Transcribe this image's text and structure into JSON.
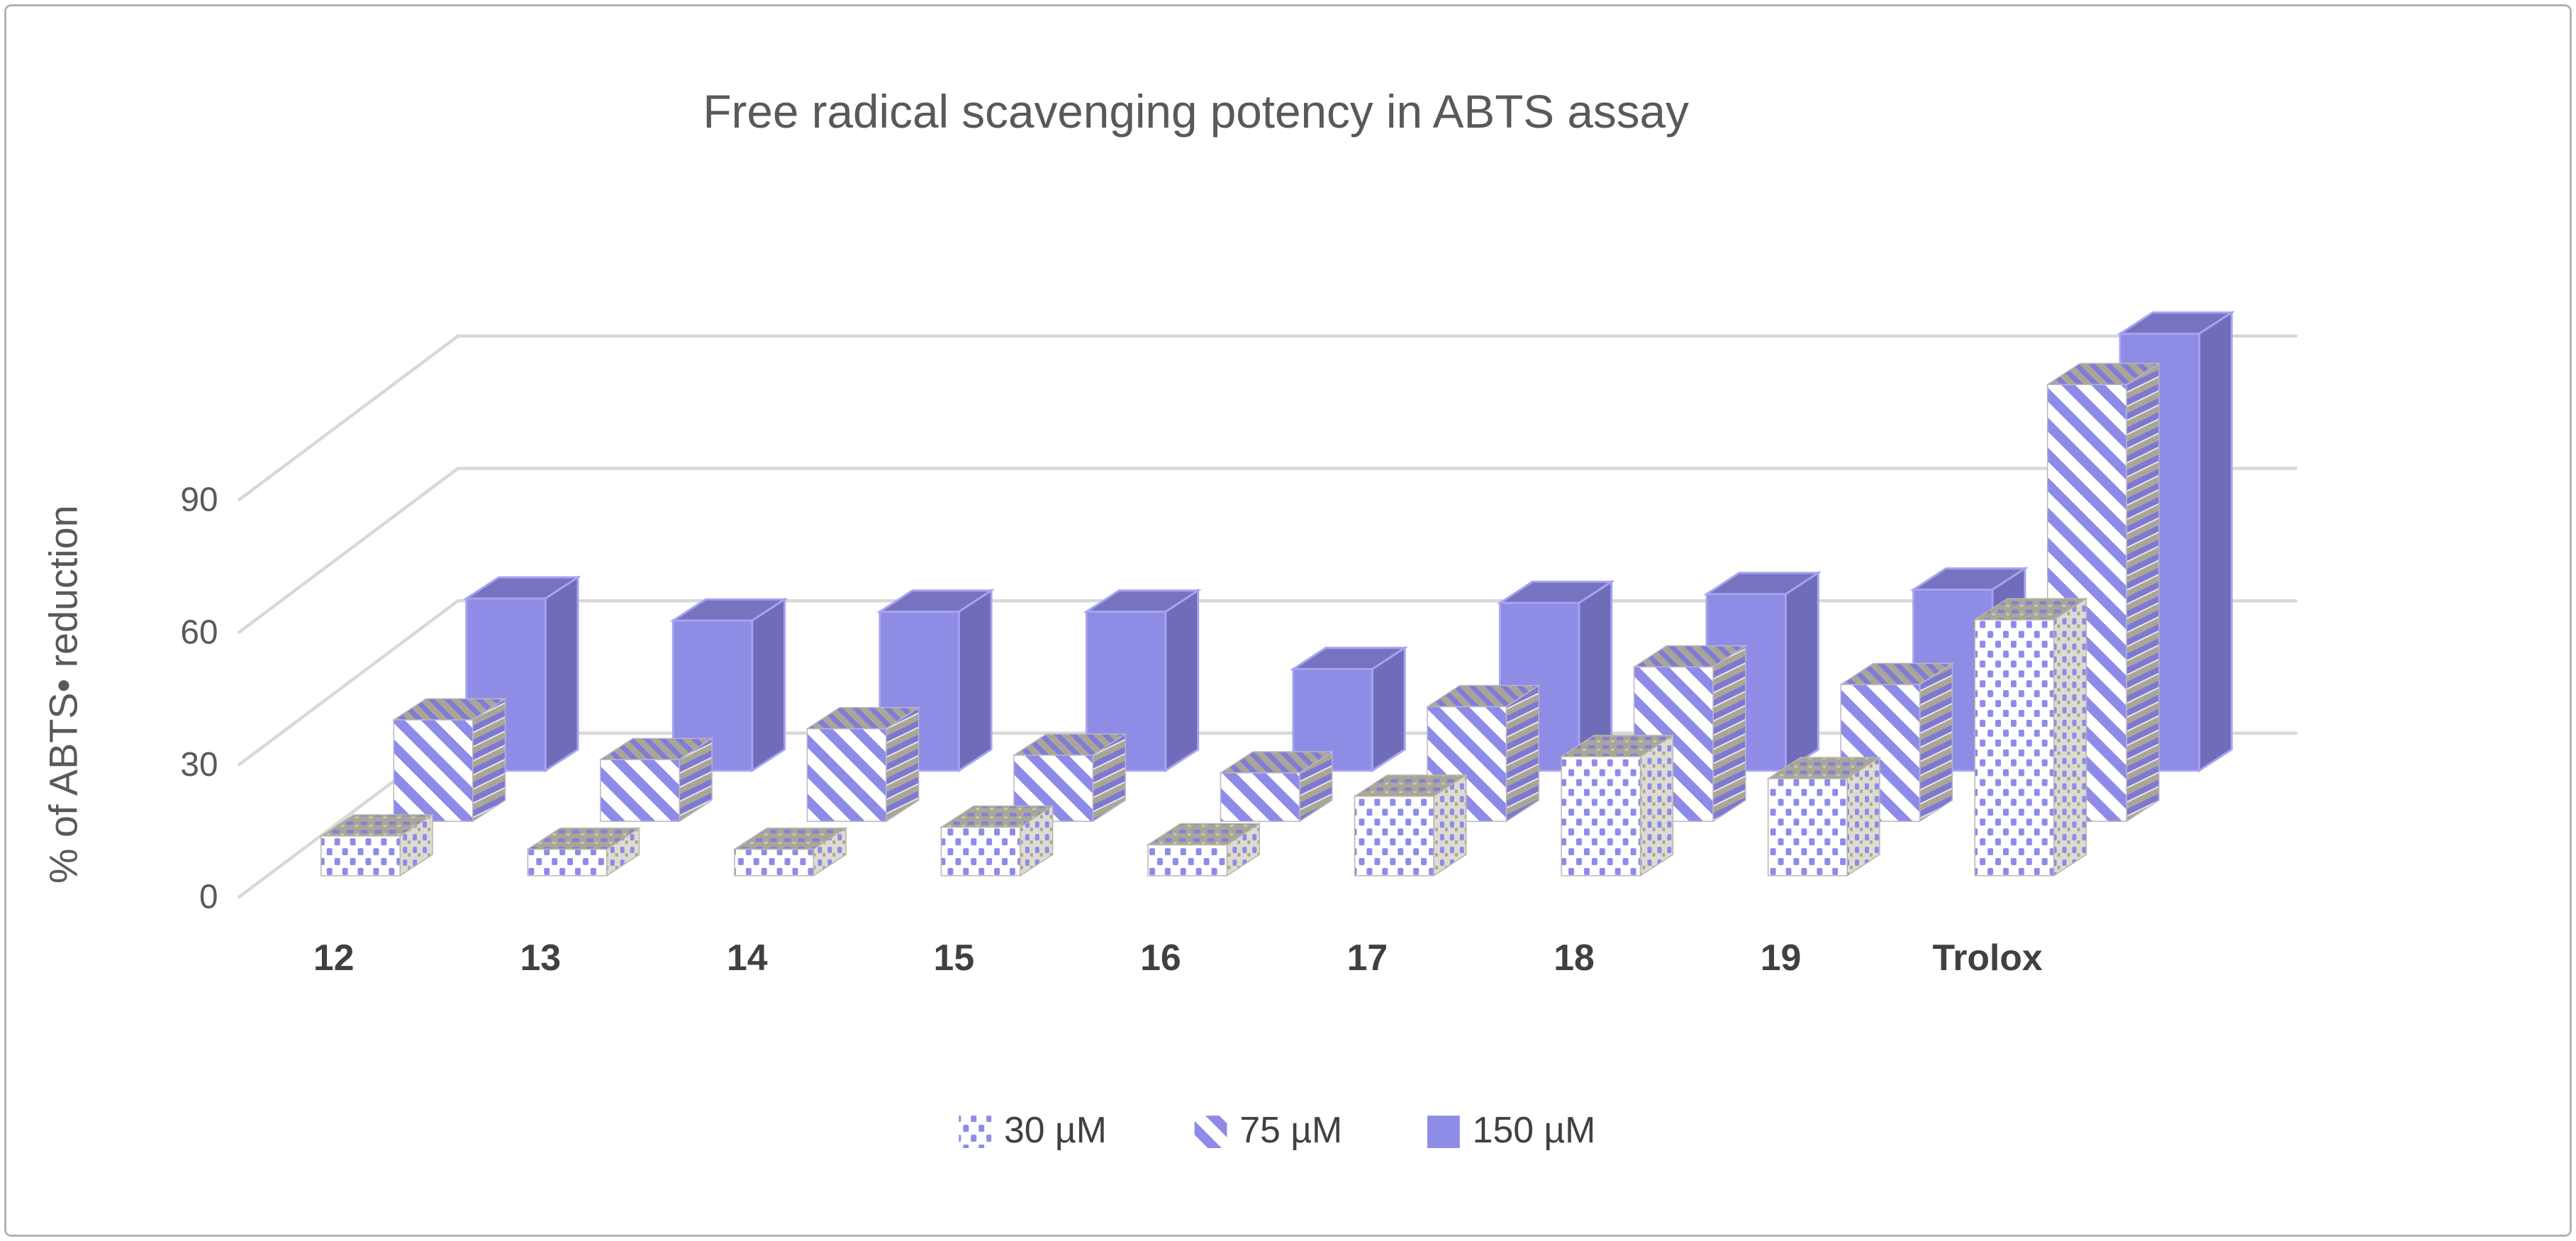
{
  "title": {
    "text": "Free radical scavenging potency in ABTS assay"
  },
  "y_axis": {
    "title": "% of ABTS• reduction"
  },
  "chart_data": {
    "type": "bar",
    "projection": "3d-clustered-column",
    "title": "Free radical scavenging potency in ABTS assay",
    "xlabel": "",
    "ylabel": "% of ABTS• reduction",
    "ylim": [
      0,
      120
    ],
    "yticks": [
      0,
      30,
      60,
      90
    ],
    "grid": true,
    "legend_position": "bottom-center",
    "categories": [
      "12",
      "13",
      "14",
      "15",
      "16",
      "17",
      "18",
      "19",
      "Trolox"
    ],
    "series": [
      {
        "name": "30 µM",
        "style": "dotted",
        "values": [
          9,
          6,
          6,
          11,
          7,
          18,
          27,
          22,
          58
        ]
      },
      {
        "name": "75 µM",
        "style": "striped",
        "values": [
          23,
          14,
          21,
          15,
          11,
          26,
          35,
          31,
          99
        ]
      },
      {
        "name": "150 µM",
        "style": "solid",
        "values": [
          39,
          34,
          36,
          36,
          23,
          38,
          40,
          41,
          99
        ]
      }
    ],
    "colors": {
      "accent": "#8f8ce6",
      "accent_top": "#7673c0",
      "accent_side": "#6f6cba",
      "accent_edge": "#a5a3f0",
      "pattern_blue": "#8e8be8",
      "pattern_gray": "#a9a698",
      "gridline": "#d8d8d8",
      "axis_text": "#595959",
      "category_text": "#404040"
    }
  }
}
